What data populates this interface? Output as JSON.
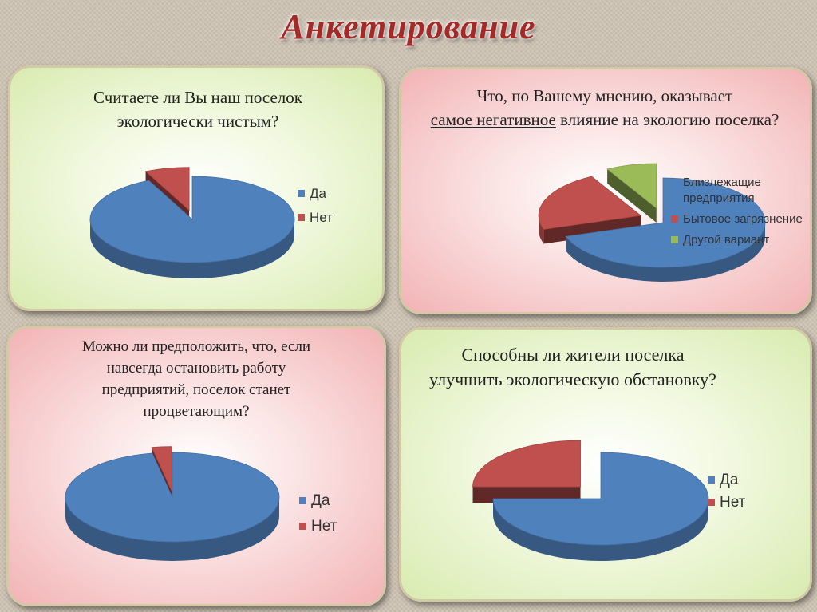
{
  "title": "Анкетирование",
  "colors": {
    "blue": "#4f81bd",
    "red": "#c0504d",
    "green": "#9bbb59"
  },
  "panels": [
    {
      "question": "Считаете ли Вы наш поселок экологически чистым?",
      "legend": [
        "Да",
        "Нет"
      ]
    },
    {
      "question_pre": "Что, по Вашему мнению, оказывает",
      "question_underlined": "самое негативное",
      "question_post": "влияние на экологию поселка?",
      "legend": [
        "Близлежащие предприятия",
        "Бытовое загрязнение",
        "Другой вариант"
      ]
    },
    {
      "question": "Можно ли предположить, что, если навсегда остановить работу предприятий, поселок станет процветающим?",
      "legend": [
        "Да",
        "Нет"
      ]
    },
    {
      "question": "Способны ли жители поселка улучшить экологическую обстановку?",
      "legend": [
        "Да",
        "Нет"
      ]
    }
  ],
  "chart_data": [
    {
      "type": "pie",
      "categories": [
        "Да",
        "Нет"
      ],
      "values": [
        93,
        7
      ]
    },
    {
      "type": "pie",
      "categories": [
        "Близлежащие предприятия",
        "Бытовое загрязнение",
        "Другой вариант"
      ],
      "values": [
        70,
        22,
        8
      ]
    },
    {
      "type": "pie",
      "categories": [
        "Да",
        "Нет"
      ],
      "values": [
        97,
        3
      ]
    },
    {
      "type": "pie",
      "categories": [
        "Да",
        "Нет"
      ],
      "values": [
        75,
        25
      ]
    }
  ]
}
